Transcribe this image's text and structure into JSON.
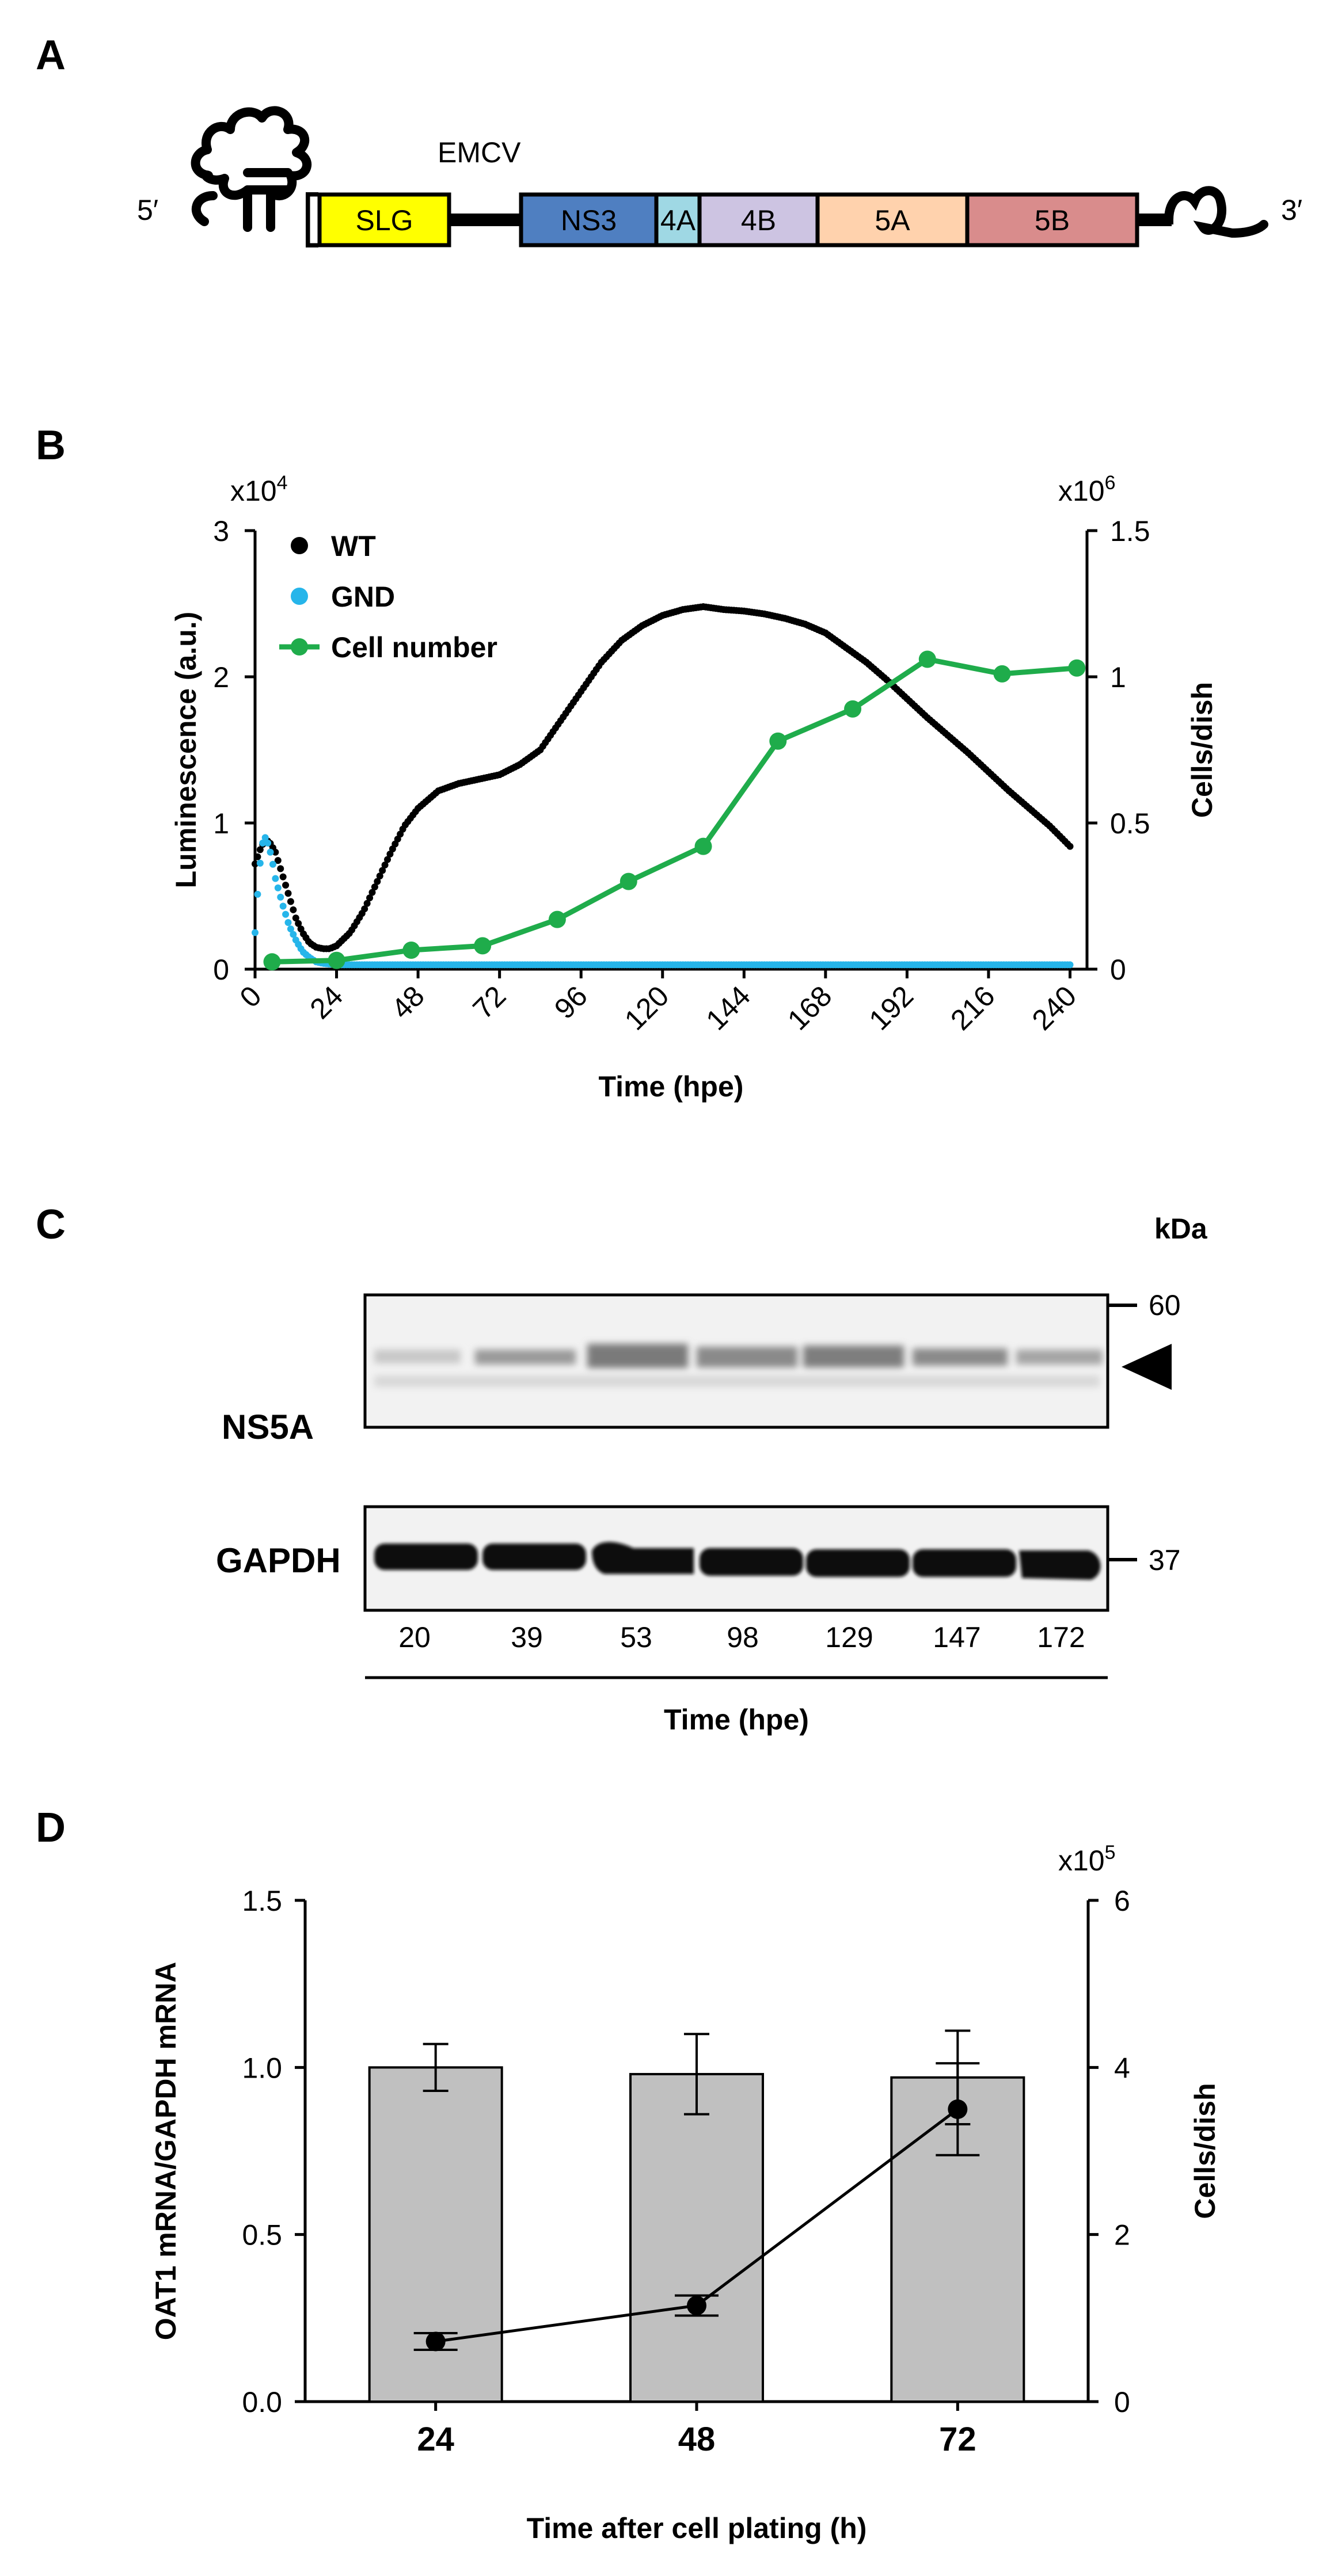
{
  "panels": {
    "a": "A",
    "b": "B",
    "c": "C",
    "d": "D"
  },
  "construct": {
    "five_prime": "5′",
    "three_prime": "3′",
    "emcv": "EMCV",
    "segments": [
      {
        "label": "SLG",
        "color": "#ffff00"
      },
      {
        "label": "NS3",
        "color": "#4f7fc1"
      },
      {
        "label": "4A",
        "color": "#9fd8e4"
      },
      {
        "label": "4B",
        "color": "#cdc4e2"
      },
      {
        "label": "5A",
        "color": "#ffd2ad"
      },
      {
        "label": "5B",
        "color": "#d98c8c"
      }
    ]
  },
  "chart_data": [
    {
      "type": "line",
      "xlabel": "Time (hpe)",
      "ylabel": "Luminescence (a.u.)",
      "y2label": "Cells/dish",
      "y_multiplier": "x10",
      "y_exponent": "4",
      "y2_multiplier": "x10",
      "y2_exponent": "6",
      "xlim": [
        0,
        245
      ],
      "ylim": [
        0,
        3
      ],
      "y2lim": [
        0,
        1.5
      ],
      "xticks": [
        0,
        24,
        48,
        72,
        96,
        120,
        144,
        168,
        192,
        216,
        240
      ],
      "yticks": [
        0,
        1,
        2,
        3
      ],
      "y2ticks": [
        0,
        0.5,
        1,
        1.5
      ],
      "legend_position": "top-left",
      "series": [
        {
          "name": "WT",
          "axis": "left",
          "color": "#000000",
          "style": "dots",
          "x": [
            0,
            2,
            4,
            6,
            8,
            10,
            12,
            14,
            16,
            18,
            20,
            22,
            24,
            28,
            32,
            36,
            40,
            44,
            48,
            54,
            60,
            66,
            72,
            78,
            84,
            90,
            96,
            102,
            108,
            114,
            120,
            126,
            132,
            138,
            144,
            150,
            156,
            162,
            168,
            174,
            180,
            186,
            192,
            198,
            204,
            210,
            216,
            222,
            228,
            234,
            240
          ],
          "y": [
            0.72,
            0.85,
            0.88,
            0.8,
            0.65,
            0.5,
            0.35,
            0.25,
            0.18,
            0.15,
            0.14,
            0.14,
            0.16,
            0.25,
            0.4,
            0.6,
            0.8,
            0.98,
            1.1,
            1.22,
            1.27,
            1.3,
            1.33,
            1.4,
            1.5,
            1.7,
            1.9,
            2.1,
            2.25,
            2.35,
            2.42,
            2.46,
            2.48,
            2.46,
            2.45,
            2.43,
            2.4,
            2.36,
            2.3,
            2.2,
            2.1,
            1.98,
            1.85,
            1.72,
            1.6,
            1.48,
            1.35,
            1.22,
            1.1,
            0.98,
            0.84
          ]
        },
        {
          "name": "GND",
          "axis": "left",
          "color": "#26b5ea",
          "style": "dots",
          "x": [
            0,
            1,
            2,
            3,
            4,
            5,
            6,
            8,
            10,
            12,
            14,
            16,
            18,
            20,
            24,
            30,
            40,
            60,
            80,
            100,
            120,
            140,
            160,
            180,
            200,
            220,
            240
          ],
          "y": [
            0.25,
            0.6,
            0.85,
            0.9,
            0.85,
            0.75,
            0.62,
            0.45,
            0.3,
            0.2,
            0.12,
            0.08,
            0.05,
            0.04,
            0.03,
            0.03,
            0.03,
            0.03,
            0.03,
            0.03,
            0.03,
            0.03,
            0.03,
            0.03,
            0.03,
            0.03,
            0.03
          ]
        },
        {
          "name": "Cell number",
          "axis": "right",
          "color": "#1fac4b",
          "style": "line-markers",
          "x": [
            5,
            24,
            46,
            67,
            89,
            110,
            132,
            154,
            176,
            198,
            220,
            242
          ],
          "y": [
            0.025,
            0.03,
            0.065,
            0.08,
            0.17,
            0.3,
            0.42,
            0.78,
            0.89,
            1.06,
            1.01,
            1.03
          ]
        }
      ]
    },
    {
      "type": "bar",
      "xlabel": "Time after cell plating (h)",
      "ylabel": "OAT1 mRNA/GAPDH mRNA",
      "y2label": "Cells/dish",
      "y2_multiplier": "x10",
      "y2_exponent": "5",
      "categories": [
        "24",
        "48",
        "72"
      ],
      "ylim": [
        0,
        1.5
      ],
      "yticks": [
        "0.0",
        "0.5",
        "1.0",
        "1.5"
      ],
      "y2lim": [
        0,
        6
      ],
      "y2ticks": [
        "0",
        "2",
        "4",
        "6"
      ],
      "series": [
        {
          "name": "OAT1 mRNA/GAPDH mRNA",
          "axis": "left",
          "type": "bar",
          "color": "#c0c0c0",
          "values": [
            1.0,
            0.98,
            0.97
          ],
          "errors": [
            0.07,
            0.12,
            0.14
          ]
        },
        {
          "name": "Cells/dish",
          "axis": "right",
          "type": "line",
          "color": "#000000",
          "values": [
            0.72,
            1.15,
            3.5
          ],
          "errors": [
            0.1,
            0.12,
            0.55
          ]
        }
      ]
    }
  ],
  "blot": {
    "kda_label": "kDa",
    "ns5a_label": "NS5A",
    "gapdh_label": "GAPDH",
    "marker_60": "60",
    "marker_37": "37",
    "lanes": [
      "20",
      "39",
      "53",
      "98",
      "129",
      "147",
      "172"
    ],
    "xlabel": "Time (hpe)"
  }
}
